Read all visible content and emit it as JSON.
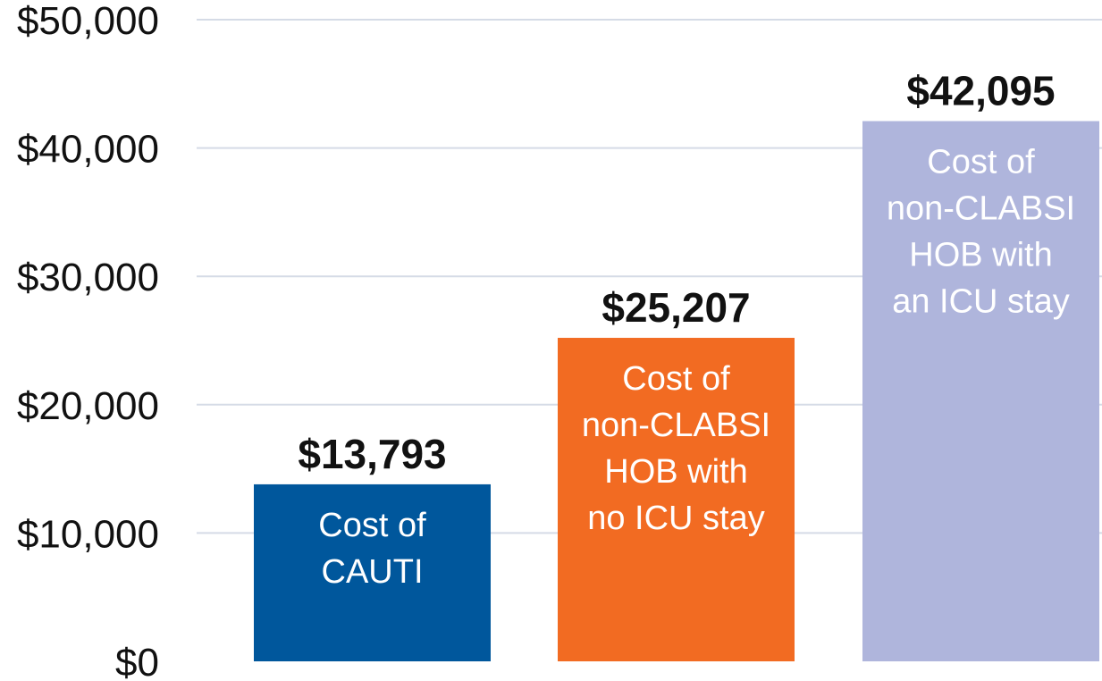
{
  "chart_data": {
    "type": "bar",
    "categories": [
      "Cost of CAUTI",
      "Cost of non-CLABSI HOB with no ICU stay",
      "Cost of non-CLABSI HOB with an ICU stay"
    ],
    "values": [
      13793,
      25207,
      42095
    ],
    "value_labels": [
      "$13,793",
      "$25,207",
      "$42,095"
    ],
    "bar_text_lines": [
      [
        "Cost of",
        "CAUTI"
      ],
      [
        "Cost of",
        "non-CLABSI",
        "HOB with",
        "no ICU stay"
      ],
      [
        "Cost of",
        "non-CLABSI",
        "HOB with",
        "an ICU stay"
      ]
    ],
    "colors": [
      "#00579c",
      "#f26b22",
      "#afb5dc"
    ],
    "ylim": [
      0,
      50000
    ],
    "y_ticks": [
      0,
      10000,
      20000,
      30000,
      40000,
      50000
    ],
    "y_tick_labels": [
      "$0",
      "$10,000",
      "$20,000",
      "$30,000",
      "$40,000",
      "$50,000"
    ],
    "grid": true,
    "grid_color": "#d5dbe6",
    "title": "",
    "xlabel": "",
    "ylabel": ""
  }
}
